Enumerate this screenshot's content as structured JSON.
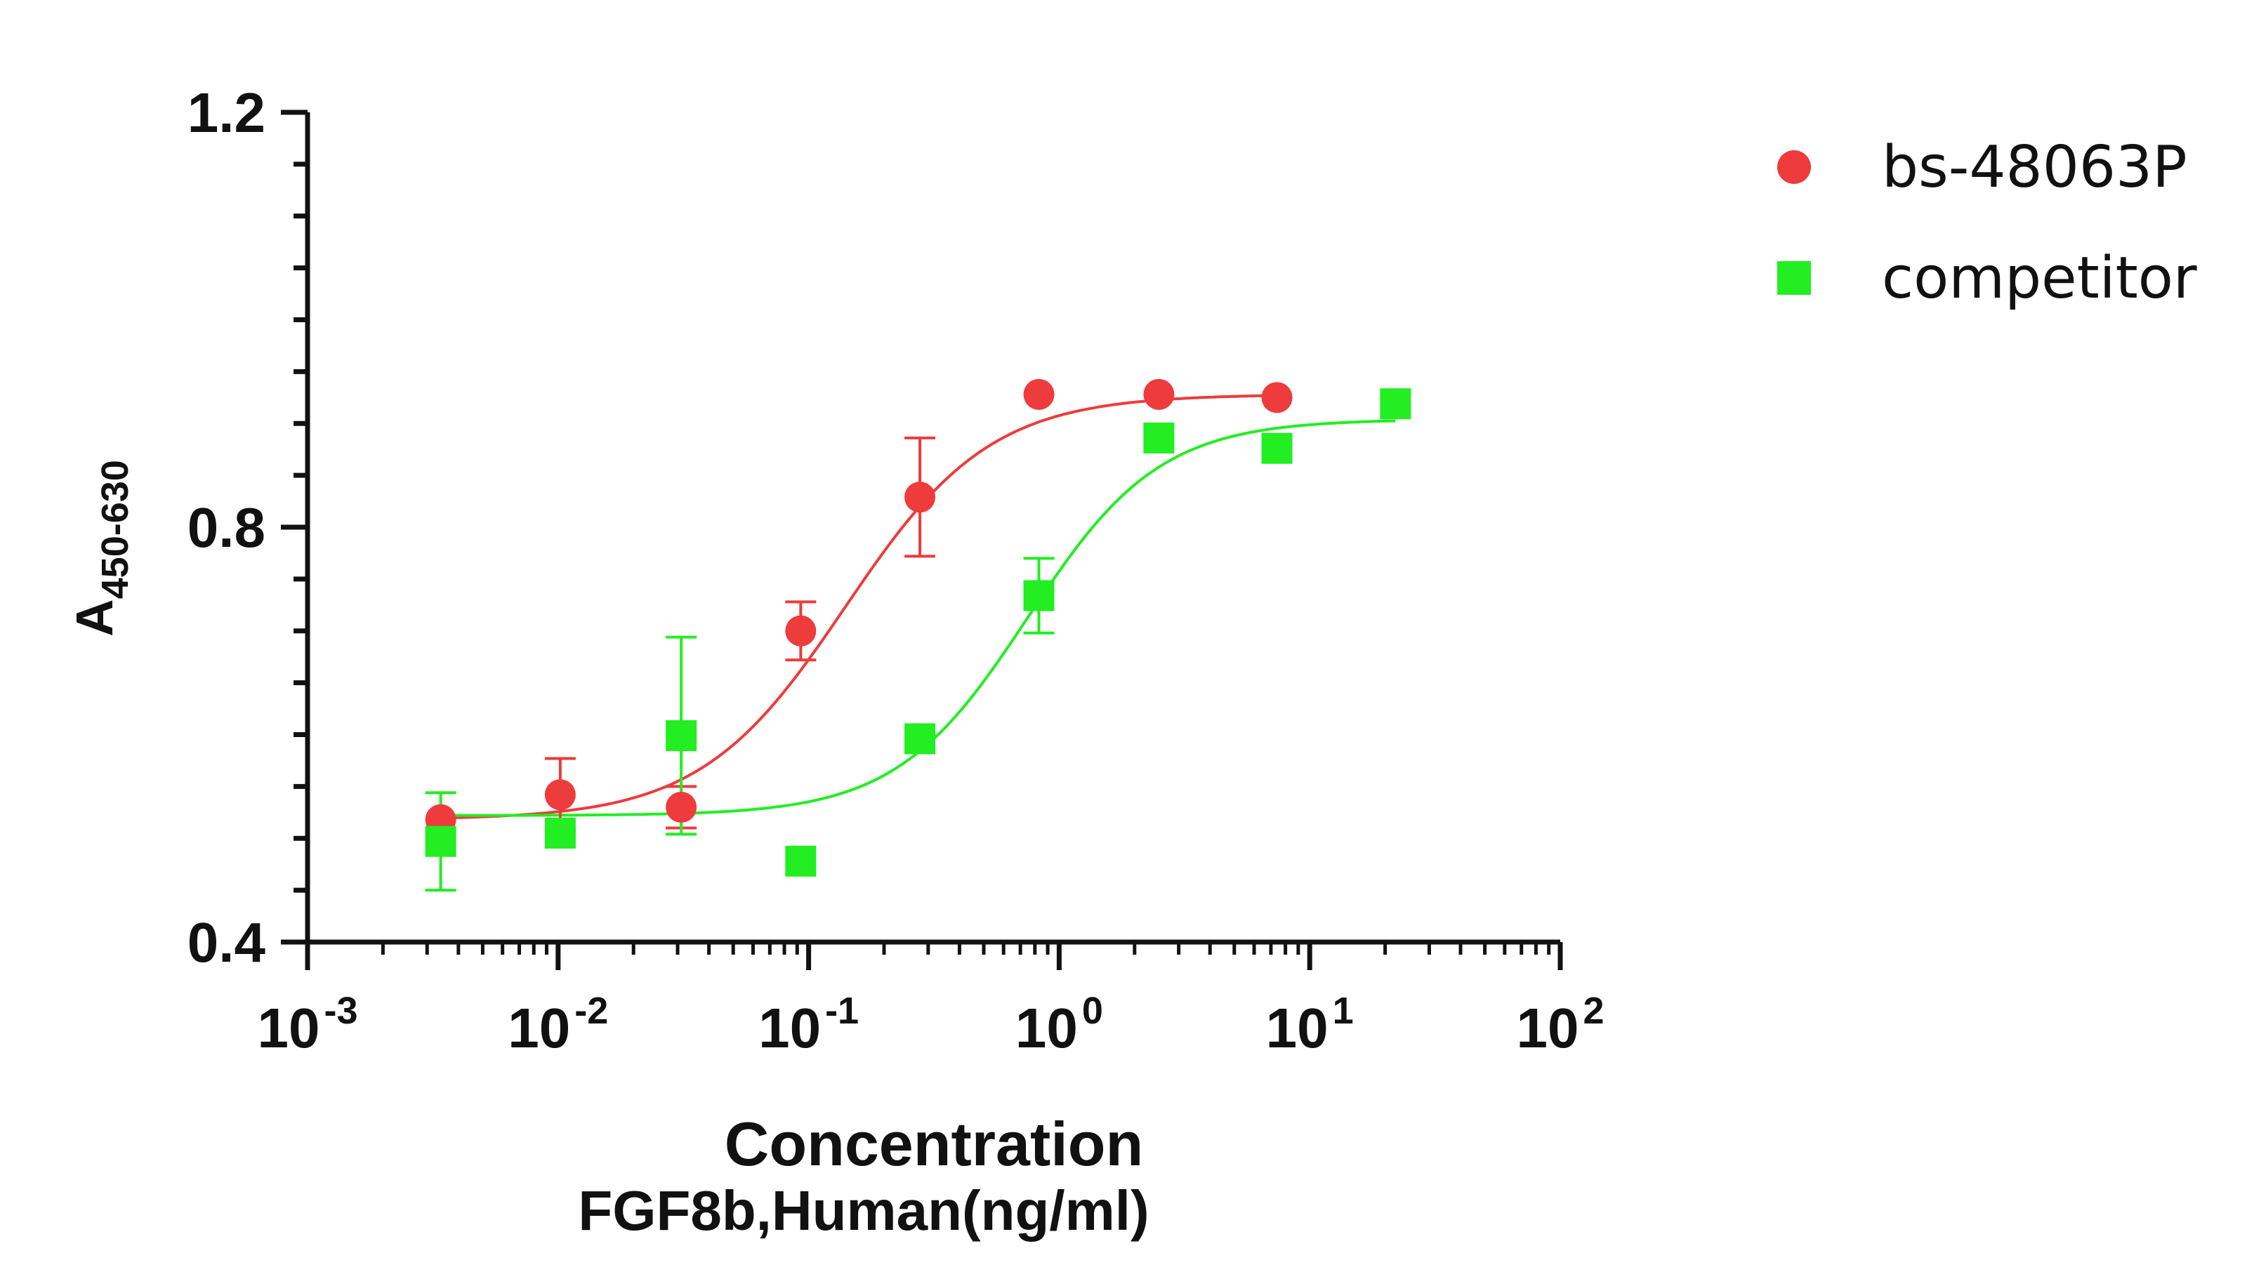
{
  "chart_data": {
    "type": "scatter",
    "x_scale": "log",
    "xlabel": "Concentration",
    "xlabel2": "FGF8b,Human(ng/ml)",
    "ylabel_main": "A",
    "ylabel_sub": "450-630",
    "xlim": [
      0.001,
      100
    ],
    "ylim": [
      0.4,
      1.2
    ],
    "y_major_ticks": [
      0.4,
      0.8,
      1.2
    ],
    "y_minor_step": 0.05,
    "x_ticks": [
      {
        "value": 0.001,
        "base": "10",
        "exp": "-3"
      },
      {
        "value": 0.01,
        "base": "10",
        "exp": "-2"
      },
      {
        "value": 0.1,
        "base": "10",
        "exp": "-1"
      },
      {
        "value": 1,
        "base": "10",
        "exp": "0"
      },
      {
        "value": 10,
        "base": "10",
        "exp": "1"
      },
      {
        "value": 100,
        "base": "10",
        "exp": "2"
      }
    ],
    "y_tick_labels": [
      "0.4",
      "0.8",
      "1.2"
    ],
    "grid": false,
    "legend_position": "top-right",
    "series": [
      {
        "name": "bs-48063P",
        "color": "#ee3b3b",
        "marker": "circle",
        "points": [
          {
            "x": 0.0034,
            "y": 0.518,
            "err": 0.0
          },
          {
            "x": 0.0102,
            "y": 0.542,
            "err": 0.035
          },
          {
            "x": 0.031,
            "y": 0.53,
            "err": 0.02
          },
          {
            "x": 0.093,
            "y": 0.7,
            "err": 0.028
          },
          {
            "x": 0.278,
            "y": 0.829,
            "err": 0.057
          },
          {
            "x": 0.83,
            "y": 0.928,
            "err": 0.0
          },
          {
            "x": 2.5,
            "y": 0.928,
            "err": 0.0
          },
          {
            "x": 7.4,
            "y": 0.925,
            "err": 0.0
          }
        ],
        "fit": {
          "bottom": 0.518,
          "top": 0.928,
          "ec50": 0.14,
          "hill": 1.5
        }
      },
      {
        "name": "competitor",
        "color": "#22ee22",
        "marker": "square",
        "points": [
          {
            "x": 0.0034,
            "y": 0.497,
            "err": 0.047
          },
          {
            "x": 0.0102,
            "y": 0.505,
            "err": 0.0
          },
          {
            "x": 0.031,
            "y": 0.599,
            "err": 0.095
          },
          {
            "x": 0.093,
            "y": 0.478,
            "err": 0.0
          },
          {
            "x": 0.278,
            "y": 0.596,
            "err": 0.0
          },
          {
            "x": 0.83,
            "y": 0.734,
            "err": 0.036
          },
          {
            "x": 2.5,
            "y": 0.886,
            "err": 0.0
          },
          {
            "x": 7.4,
            "y": 0.876,
            "err": 0.0
          },
          {
            "x": 22.0,
            "y": 0.919,
            "err": 0.0
          }
        ],
        "fit": {
          "bottom": 0.522,
          "top": 0.904,
          "ec50": 0.75,
          "hill": 1.65
        }
      }
    ]
  }
}
